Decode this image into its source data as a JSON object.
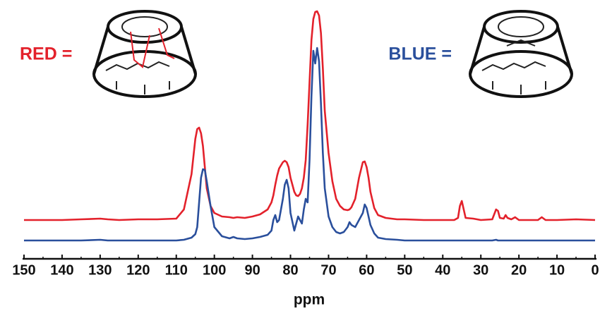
{
  "chart_data": {
    "type": "line",
    "x_label": "ppm",
    "xlim": [
      150,
      0
    ],
    "xticks": [
      150,
      140,
      130,
      120,
      110,
      100,
      90,
      80,
      70,
      60,
      50,
      40,
      30,
      20,
      10,
      0
    ],
    "x": [
      150,
      145,
      140,
      135,
      130,
      128,
      125,
      120,
      115,
      110,
      108,
      106,
      105,
      104.5,
      104,
      103.5,
      103,
      102.5,
      102,
      101,
      100,
      98,
      96,
      95,
      94,
      92,
      90,
      88,
      86,
      85,
      84.5,
      84,
      83.5,
      83,
      82,
      81.5,
      81,
      80.5,
      80,
      79,
      78.5,
      78,
      77.5,
      77,
      76.5,
      76,
      75.5,
      75,
      74.5,
      74,
      73.5,
      73,
      72.5,
      72,
      71.5,
      71,
      70,
      69,
      68,
      67,
      66,
      65,
      64.5,
      64,
      63,
      62,
      61,
      60.5,
      60,
      59.5,
      59,
      58,
      57,
      55,
      52,
      50,
      45,
      40,
      37,
      36,
      35.5,
      35,
      34.5,
      34,
      32,
      30,
      27,
      26,
      25.5,
      25,
      24,
      23.5,
      23,
      22,
      21,
      20,
      18,
      15,
      14,
      13,
      10,
      5,
      0
    ],
    "series": [
      {
        "name": "RED =",
        "color": "#e3212b",
        "values": [
          55,
          55,
          55,
          56,
          57,
          56,
          55,
          56,
          56,
          57,
          70,
          120,
          170,
          184,
          186,
          178,
          160,
          130,
          100,
          75,
          65,
          60,
          59,
          58,
          59,
          58,
          60,
          63,
          70,
          80,
          90,
          105,
          118,
          128,
          137,
          139,
          137,
          130,
          115,
          95,
          90,
          89,
          92,
          100,
          115,
          140,
          190,
          250,
          310,
          340,
          350,
          351,
          345,
          320,
          270,
          210,
          150,
          110,
          85,
          75,
          70,
          69,
          70,
          73,
          85,
          115,
          137,
          138,
          130,
          115,
          95,
          72,
          62,
          58,
          56,
          56,
          55,
          55,
          55,
          58,
          75,
          82,
          70,
          58,
          57,
          55,
          56,
          70,
          68,
          58,
          57,
          62,
          58,
          56,
          59,
          55,
          55,
          55,
          59,
          55,
          55,
          56,
          55
        ]
      },
      {
        "name": "BLUE =",
        "color": "#2a4f9c",
        "values": [
          26,
          26,
          26,
          26,
          27,
          26,
          26,
          26,
          26,
          26,
          27,
          30,
          35,
          45,
          80,
          115,
          127,
          126,
          110,
          75,
          45,
          32,
          29,
          31,
          29,
          28,
          29,
          31,
          34,
          40,
          55,
          62,
          52,
          55,
          85,
          105,
          112,
          100,
          65,
          40,
          50,
          60,
          55,
          50,
          70,
          85,
          80,
          140,
          230,
          295,
          277,
          299,
          280,
          220,
          150,
          100,
          60,
          45,
          38,
          36,
          38,
          45,
          52,
          48,
          45,
          55,
          65,
          77,
          72,
          60,
          48,
          36,
          30,
          28,
          27,
          26,
          26,
          26,
          26,
          26,
          26,
          26,
          26,
          26,
          26,
          26,
          26,
          27,
          26,
          26,
          26,
          26,
          26,
          26,
          26,
          26,
          26,
          26,
          26,
          26,
          26,
          26,
          26
        ]
      }
    ]
  }
}
